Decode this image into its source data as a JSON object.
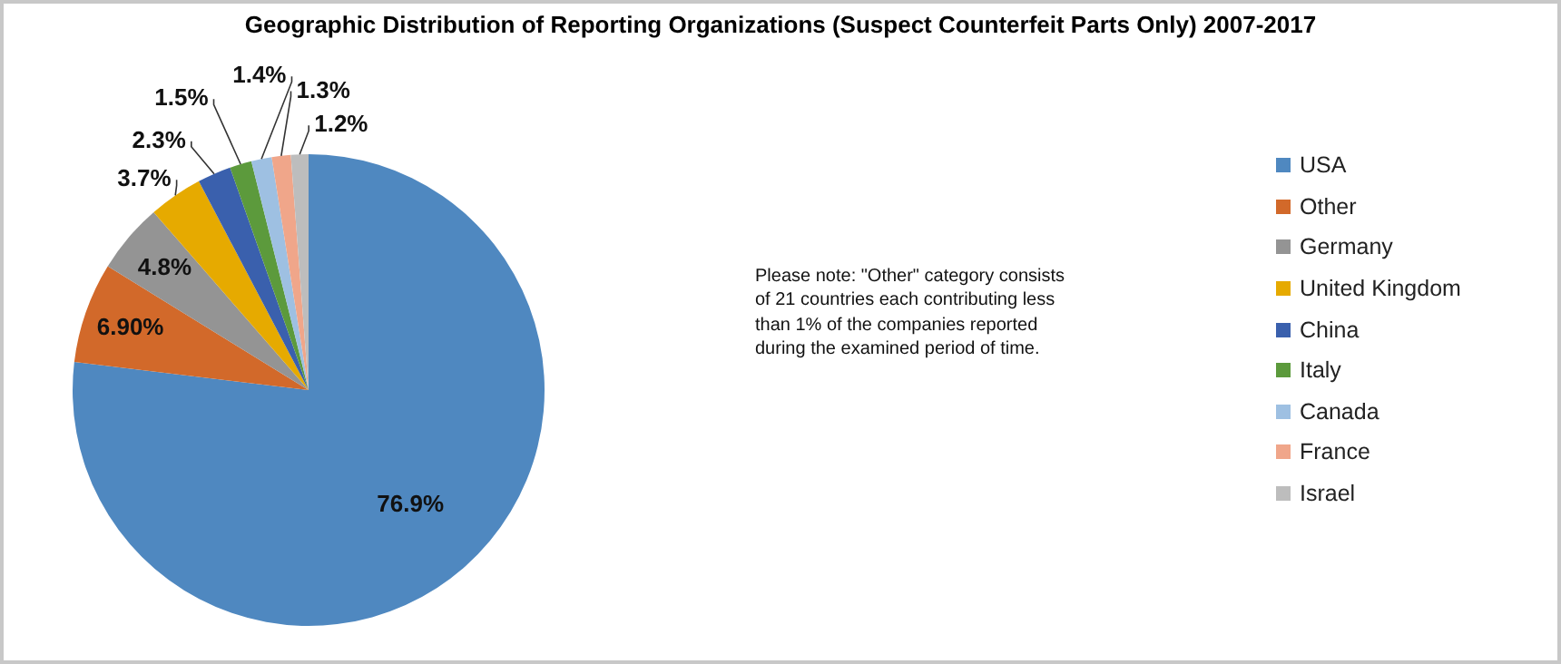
{
  "chart_data": {
    "type": "pie",
    "title": "Geographic Distribution of Reporting Organizations (Suspect Counterfeit Parts Only) 2007-2017",
    "categories": [
      "USA",
      "Other",
      "Germany",
      "United Kingdom",
      "China",
      "Italy",
      "Canada",
      "France",
      "Israel"
    ],
    "values": [
      76.9,
      6.9,
      4.8,
      3.7,
      2.3,
      1.5,
      1.4,
      1.3,
      1.2
    ],
    "value_labels": [
      "76.9%",
      "6.90%",
      "4.8%",
      "3.7%",
      "2.3%",
      "1.5%",
      "1.4%",
      "1.3%",
      "1.2%"
    ],
    "colors": [
      "#4f88c0",
      "#d2692a",
      "#949494",
      "#e6aa00",
      "#3a60ad",
      "#5c9a3c",
      "#9ec0e2",
      "#f0a68a",
      "#bdbdbd"
    ],
    "legend": "right",
    "annotations": [
      "Please note: \"Other\" category consists of  21 countries each contributing less than 1% of the companies reported during the examined period of time."
    ]
  }
}
